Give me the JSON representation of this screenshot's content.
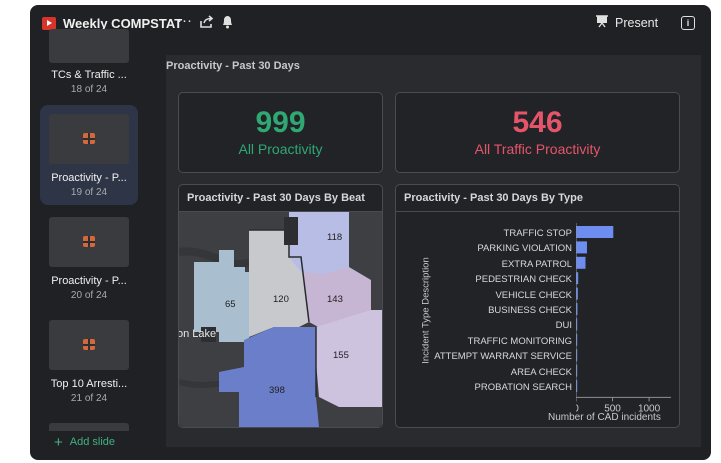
{
  "header": {
    "title": "Weekly COMPSTAT",
    "more_icon": "more-horizontal-icon",
    "share_icon": "share-icon",
    "bell_icon": "bell-icon",
    "present_label": "Present",
    "info_icon": "info-icon"
  },
  "sidebar": {
    "slides": [
      {
        "label": "TCs & Traffic ...",
        "count": "18 of 24",
        "active": false
      },
      {
        "label": "Proactivity - P...",
        "count": "19 of 24",
        "active": true
      },
      {
        "label": "Proactivity - P...",
        "count": "20 of 24",
        "active": false
      },
      {
        "label": "Top 10 Arresti...",
        "count": "21 of 24",
        "active": false
      }
    ],
    "add_slide_label": "Add slide"
  },
  "main": {
    "page_title": "Proactivity - Past 30 Days",
    "kpis": [
      {
        "value": "999",
        "label": "All Proactivity",
        "color": "#2fa873"
      },
      {
        "value": "546",
        "label": "All Traffic Proactivity",
        "color": "#e5556a"
      }
    ],
    "map_panel": {
      "title": "Proactivity - Past 30 Days By Beat",
      "beats": [
        "118",
        "120",
        "143",
        "65",
        "155",
        "398"
      ],
      "place_label": "on Lake"
    },
    "type_panel": {
      "title": "Proactivity - Past 30 Days By Type"
    }
  },
  "chart_data": {
    "type": "bar",
    "orientation": "horizontal",
    "title": "Proactivity - Past 30 Days By Type",
    "categories": [
      "TRAFFIC STOP",
      "PARKING VIOLATION",
      "EXTRA PATROL",
      "PEDESTRIAN CHECK",
      "VEHICLE CHECK",
      "BUSINESS CHECK",
      "DUI",
      "TRAFFIC MONITORING",
      "ATTEMPT WARRANT SERVICE",
      "AREA CHECK",
      "PROBATION SEARCH"
    ],
    "values": [
      510,
      150,
      130,
      30,
      25,
      20,
      15,
      10,
      5,
      3,
      2
    ],
    "xlabel": "Number of CAD incidents",
    "ylabel": "Incident Type Description",
    "xticks": [
      "0",
      "500",
      "1000"
    ],
    "xlim": [
      0,
      1300
    ],
    "bar_color": "#6d8ef0",
    "grid": false
  }
}
